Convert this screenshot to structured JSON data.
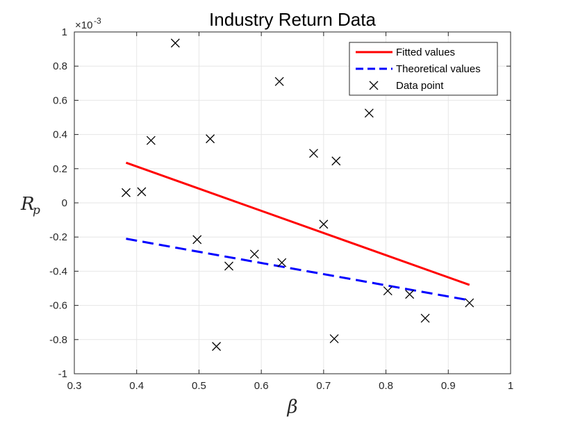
{
  "chart_data": {
    "type": "scatter",
    "title": "Industry Return Data",
    "xlabel": "β",
    "ylabel_main": "R",
    "ylabel_sub": "p",
    "exponent_label": "×10",
    "exponent_power": "-3",
    "xlim": [
      0.3,
      1.0
    ],
    "ylim": [
      -1.0,
      1.0
    ],
    "xticks": [
      0.3,
      0.4,
      0.5,
      0.6,
      0.7,
      0.8,
      0.9,
      1.0
    ],
    "xtick_labels": [
      "0.3",
      "0.4",
      "0.5",
      "0.6",
      "0.7",
      "0.8",
      "0.9",
      "1"
    ],
    "yticks": [
      -1.0,
      -0.8,
      -0.6,
      -0.4,
      -0.2,
      0.0,
      0.2,
      0.4,
      0.6,
      0.8,
      1.0
    ],
    "ytick_labels": [
      "-1",
      "-0.8",
      "-0.6",
      "-0.4",
      "-0.2",
      "0",
      "0.2",
      "0.4",
      "0.6",
      "0.8",
      "1"
    ],
    "grid": true,
    "legend_position": "top-right",
    "series": [
      {
        "name": "Fitted values",
        "kind": "line",
        "color": "#ff0000",
        "dash": "solid",
        "x": [
          0.383,
          0.934
        ],
        "y": [
          0.235,
          -0.48
        ]
      },
      {
        "name": "Theoretical values",
        "kind": "line",
        "color": "#0000ff",
        "dash": "dashed",
        "x": [
          0.383,
          0.934
        ],
        "y": [
          -0.21,
          -0.57
        ]
      },
      {
        "name": "Data point",
        "kind": "marker",
        "marker": "x",
        "color": "#000000",
        "x": [
          0.383,
          0.408,
          0.423,
          0.462,
          0.497,
          0.518,
          0.528,
          0.548,
          0.589,
          0.629,
          0.633,
          0.684,
          0.7,
          0.717,
          0.72,
          0.773,
          0.803,
          0.838,
          0.863,
          0.934
        ],
        "y": [
          0.06,
          0.065,
          0.365,
          0.935,
          -0.215,
          0.375,
          -0.84,
          -0.37,
          -0.3,
          0.71,
          -0.35,
          0.29,
          -0.125,
          -0.795,
          0.245,
          0.525,
          -0.515,
          -0.535,
          -0.675,
          -0.585
        ]
      }
    ]
  }
}
